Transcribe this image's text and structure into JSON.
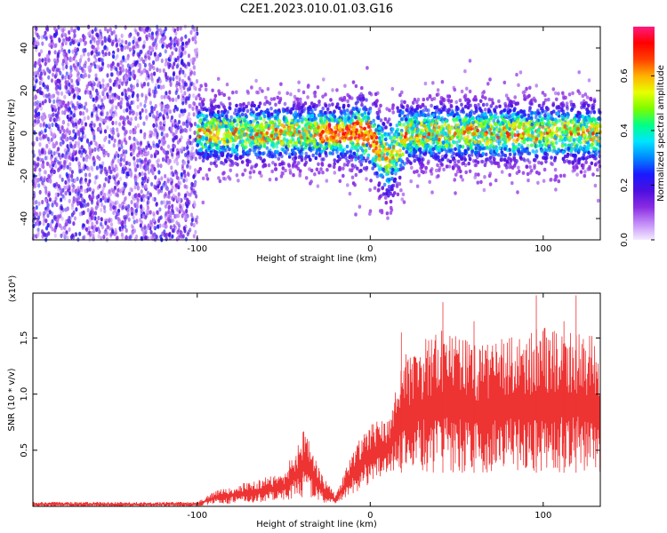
{
  "title": "C2E1.2023.010.01.03.G16",
  "chart_data": [
    {
      "type": "heatmap",
      "xlabel": "Height of straight line (km)",
      "ylabel": "Frequency (Hz)",
      "xlim": [
        -195,
        133
      ],
      "ylim": [
        -50,
        50
      ],
      "x_ticks": [
        -100,
        0,
        100
      ],
      "y_ticks": [
        -40,
        -20,
        0,
        20,
        40
      ],
      "grid": false,
      "colorbar": {
        "label": "Normalized spectral amplitude",
        "range": [
          0,
          0.78
        ],
        "ticks": [
          0.0,
          0.2,
          0.4,
          0.6
        ],
        "colormap": [
          "#f4eaff",
          "#c28cf8",
          "#8a2be2",
          "#4b0fe0",
          "#1a1aff",
          "#0088ff",
          "#00e5ff",
          "#00ff88",
          "#7cfc00",
          "#e8ff00",
          "#ffb000",
          "#ff4000",
          "#ff0000",
          "#ff1a80"
        ]
      },
      "regions": [
        {
          "x_range": [
            -195,
            -100
          ],
          "description": "broadband scatter",
          "freq_span": [
            -50,
            50
          ],
          "amplitude_range": [
            0.05,
            0.25
          ]
        },
        {
          "x_range": [
            -100,
            133
          ],
          "description": "signal band",
          "center_hz": 0,
          "half_width_hz": 12,
          "amplitude_range": [
            0.1,
            0.72
          ]
        }
      ]
    },
    {
      "type": "line",
      "xlabel": "Height of straight line (km)",
      "ylabel": "SNR (10 * v/v)",
      "y_multiplier": "(x10⁴)",
      "xlim": [
        -195,
        133
      ],
      "ylim": [
        0,
        1.9
      ],
      "x_ticks": [
        -100,
        0,
        100
      ],
      "y_ticks": [
        0.5,
        1.0,
        1.5
      ],
      "y_tick_labels": [
        "0.5",
        "1.0",
        "1.5"
      ],
      "grid": false,
      "series_color": "#ee3333",
      "envelope": [
        {
          "x": -195,
          "low": 0.0,
          "high": 0.04
        },
        {
          "x": -100,
          "low": 0.0,
          "high": 0.04
        },
        {
          "x": -90,
          "low": 0.02,
          "high": 0.14
        },
        {
          "x": -70,
          "low": 0.03,
          "high": 0.22
        },
        {
          "x": -50,
          "low": 0.05,
          "high": 0.3
        },
        {
          "x": -37,
          "low": 0.08,
          "high": 0.72
        },
        {
          "x": -30,
          "low": 0.04,
          "high": 0.35
        },
        {
          "x": -20,
          "low": 0.02,
          "high": 0.1
        },
        {
          "x": -10,
          "low": 0.1,
          "high": 0.5
        },
        {
          "x": 0,
          "low": 0.2,
          "high": 0.75
        },
        {
          "x": 10,
          "low": 0.3,
          "high": 0.78
        },
        {
          "x": 20,
          "low": 0.3,
          "high": 1.35
        },
        {
          "x": 40,
          "low": 0.3,
          "high": 1.6
        },
        {
          "x": 60,
          "low": 0.3,
          "high": 1.45
        },
        {
          "x": 80,
          "low": 0.3,
          "high": 1.5
        },
        {
          "x": 100,
          "low": 0.3,
          "high": 1.6
        },
        {
          "x": 120,
          "low": 0.3,
          "high": 1.55
        },
        {
          "x": 133,
          "low": 0.3,
          "high": 1.5
        }
      ],
      "peaks": [
        {
          "x": 18,
          "y": 1.55
        },
        {
          "x": 42,
          "y": 1.82
        },
        {
          "x": 60,
          "y": 1.65
        },
        {
          "x": 96,
          "y": 1.88
        },
        {
          "x": 112,
          "y": 1.65
        },
        {
          "x": 119,
          "y": 1.88
        }
      ]
    }
  ]
}
